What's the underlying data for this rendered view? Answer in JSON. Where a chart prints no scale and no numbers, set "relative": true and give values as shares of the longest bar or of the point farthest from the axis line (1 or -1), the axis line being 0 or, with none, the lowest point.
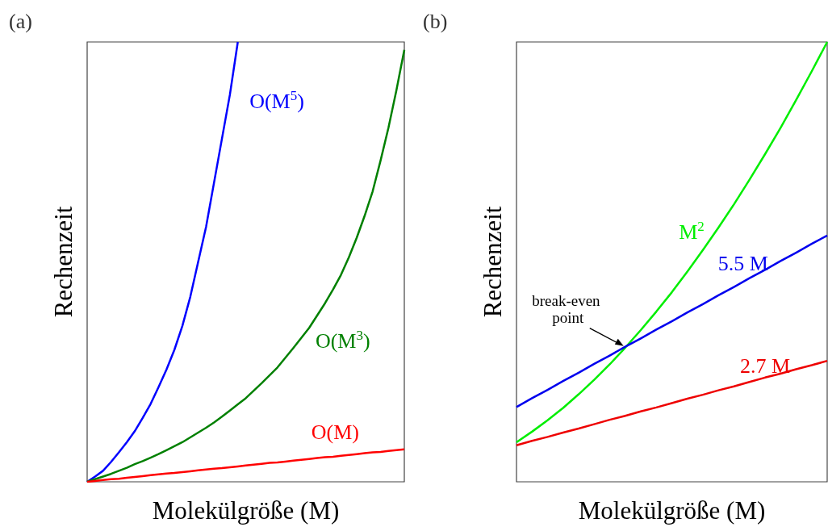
{
  "chart_data": [
    {
      "type": "line",
      "title": "(a)",
      "xlabel": "Molekülgröße (M)",
      "ylabel": "Rechenzeit",
      "relative": true,
      "marker": "none",
      "categories": [
        null,
        null,
        null,
        null,
        null,
        null,
        null,
        null,
        null,
        null,
        null,
        null,
        null,
        null,
        null,
        null,
        null,
        null,
        null,
        null,
        null,
        null,
        null,
        null,
        null,
        null,
        null,
        null,
        null,
        null,
        null,
        null,
        null,
        null,
        null,
        null,
        null,
        null,
        null,
        null,
        null
      ],
      "series": [
        {
          "name": "O(M$^{5}$)",
          "color": "#0000ff",
          "values": [
            0,
            0.012,
            0.025,
            0.045,
            0.067,
            0.09,
            0.115,
            0.145,
            0.177,
            0.215,
            0.255,
            0.3,
            0.354,
            0.42,
            0.5,
            0.58,
            0.68,
            0.78,
            0.88,
            1,
            null,
            null,
            null,
            null,
            null,
            null,
            null,
            null,
            null,
            null,
            null,
            null,
            null,
            null,
            null,
            null,
            null,
            null,
            null,
            null,
            null
          ]
        },
        {
          "name": "O(M$^{3}$)",
          "color": "#008000",
          "values": [
            0,
            0.006,
            0.012,
            0.018,
            0.025,
            0.032,
            0.04,
            0.047,
            0.055,
            0.063,
            0.072,
            0.081,
            0.09,
            0.101,
            0.112,
            0.123,
            0.135,
            0.148,
            0.162,
            0.176,
            0.19,
            0.207,
            0.224,
            0.242,
            0.26,
            0.282,
            0.304,
            0.327,
            0.35,
            0.378,
            0.406,
            0.437,
            0.47,
            0.51,
            0.555,
            0.605,
            0.66,
            0.73,
            0.805,
            0.89,
            0.982
          ]
        },
        {
          "name": "O(M)",
          "color": "#ff0000",
          "values": [
            0,
            0.002,
            0.004,
            0.006,
            0.007,
            0.009,
            0.011,
            0.013,
            0.015,
            0.017,
            0.019,
            0.02,
            0.022,
            0.024,
            0.026,
            0.028,
            0.03,
            0.031,
            0.033,
            0.035,
            0.037,
            0.039,
            0.041,
            0.043,
            0.044,
            0.046,
            0.048,
            0.05,
            0.052,
            0.054,
            0.056,
            0.057,
            0.059,
            0.061,
            0.063,
            0.065,
            0.067,
            0.068,
            0.07,
            0.072,
            0.074
          ]
        }
      ]
    },
    {
      "type": "line",
      "title": "(b)",
      "xlabel": "Molekülgröße (M)",
      "ylabel": "Rechenzeit",
      "relative": true,
      "marker": "none",
      "annotations": [
        "break-even point"
      ],
      "categories": [
        null,
        null,
        null,
        null,
        null,
        null,
        null,
        null,
        null,
        null,
        null,
        null,
        null,
        null,
        null,
        null,
        null,
        null,
        null,
        null,
        null
      ],
      "series": [
        {
          "name": "M$^{2}$",
          "color": "#00ee00",
          "values": [
            0.09,
            0.114,
            0.14,
            0.168,
            0.199,
            0.232,
            0.267,
            0.305,
            0.345,
            0.387,
            0.431,
            0.478,
            0.527,
            0.578,
            0.631,
            0.687,
            0.745,
            0.805,
            0.868,
            0.933,
            1
          ]
        },
        {
          "name": "5.5 M",
          "color": "#0000ee",
          "values": [
            0.17,
            0.19,
            0.209,
            0.229,
            0.248,
            0.268,
            0.287,
            0.307,
            0.326,
            0.346,
            0.365,
            0.385,
            0.404,
            0.424,
            0.443,
            0.463,
            0.482,
            0.502,
            0.521,
            0.541,
            0.56
          ]
        },
        {
          "name": "2.7 M",
          "color": "#ee0000",
          "values": [
            0.083,
            0.093,
            0.102,
            0.112,
            0.121,
            0.131,
            0.141,
            0.15,
            0.16,
            0.169,
            0.179,
            0.189,
            0.198,
            0.208,
            0.217,
            0.227,
            0.237,
            0.246,
            0.256,
            0.265,
            0.275
          ]
        }
      ]
    }
  ]
}
